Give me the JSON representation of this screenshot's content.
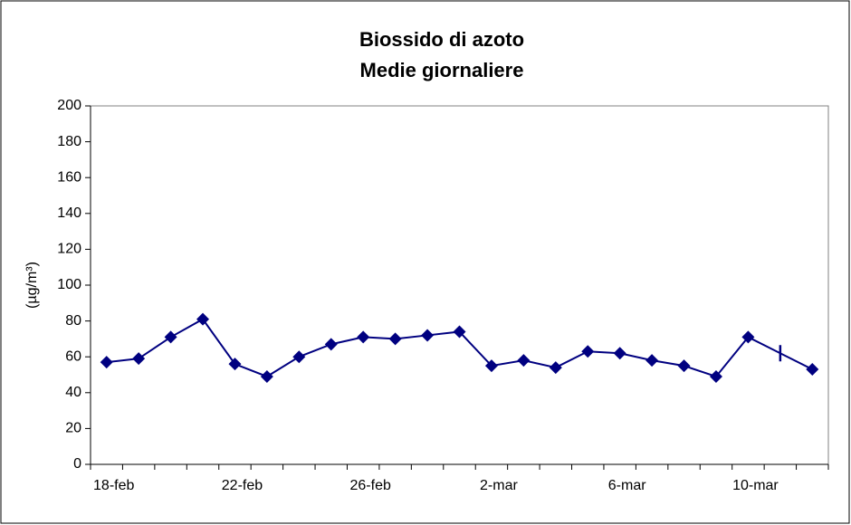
{
  "chart_data": {
    "type": "line",
    "title": "Biossido di azoto",
    "subtitle": "Medie giornaliere",
    "y_label": "(µg/m³)",
    "categories": [
      "18-feb",
      null,
      null,
      null,
      "22-feb",
      null,
      null,
      null,
      "26-feb",
      null,
      null,
      null,
      "2-mar",
      null,
      null,
      null,
      "6-mar",
      null,
      null,
      null,
      "10-mar",
      null,
      null
    ],
    "values": [
      57,
      59,
      71,
      81,
      56,
      49,
      60,
      67,
      71,
      70,
      72,
      74,
      55,
      58,
      54,
      63,
      62,
      58,
      55,
      49,
      71,
      62,
      53
    ],
    "dash_points": [
      21
    ],
    "color": "#000080",
    "ylim": [
      0,
      200
    ],
    "yticks": [
      0,
      20,
      40,
      60,
      80,
      100,
      120,
      140,
      160,
      180,
      200
    ],
    "grid": false
  }
}
